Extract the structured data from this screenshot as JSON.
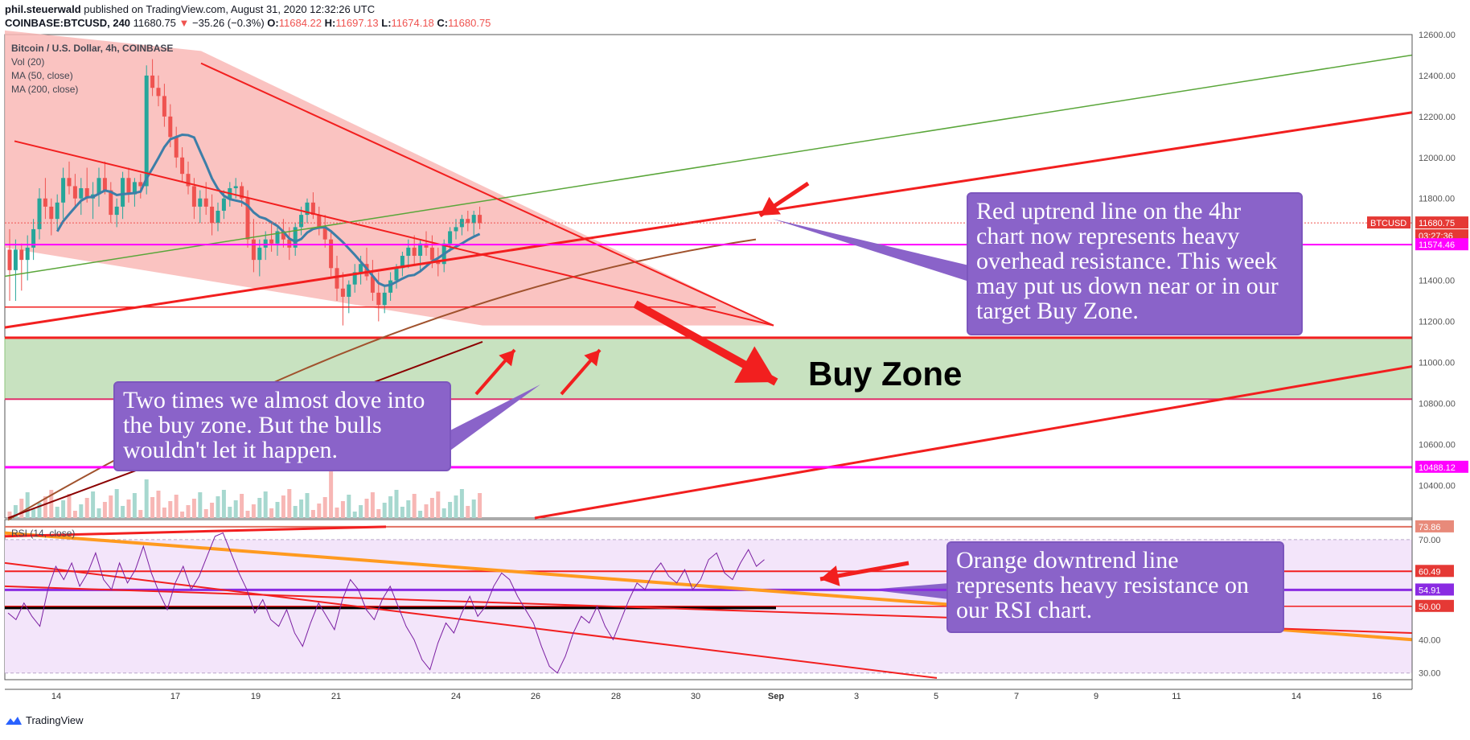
{
  "header": {
    "author": "phil.steuerwald",
    "published_text": "published on TradingView.com, August 31, 2020 12:32:26 UTC",
    "symbol": "COINBASE:BTCUSD, 240",
    "last": "11680.75",
    "change": "−35.26 (−0.3%)",
    "open_label": "O:",
    "open": "11684.22",
    "high_label": "H:",
    "high": "11697.13",
    "low_label": "L:",
    "low": "11674.18",
    "close_label": "C:",
    "close": "11680.75"
  },
  "legend": {
    "title": "Bitcoin / U.S. Dollar, 4h, COINBASE",
    "vol": "Vol (20)",
    "ma50": "MA (50, close)",
    "ma200": "MA (200, close)",
    "rsi": "RSI (14, close)"
  },
  "annotations": {
    "note_resistance": "Red uptrend line on the 4hr chart now represents heavy overhead resistance. This week may put us down near or in our target Buy Zone.",
    "note_dove": "Two times we almost dove into the buy zone. But the bulls wouldn't let it happen.",
    "note_rsi": "Orange downtrend line represents heavy resistance on our RSI chart.",
    "buy_zone": "Buy Zone"
  },
  "branding": {
    "label": "TradingView"
  },
  "colors": {
    "bull": "#26a69a",
    "bear": "#ef5350",
    "trend_red": "#f21f1f",
    "channel_fill": "#f9b9b6",
    "buyzone_fill": "#c8e2c0",
    "ma50": "#3d7ea8",
    "ma200": "#a0522d",
    "green_line": "#5aa63a",
    "magenta": "#ff00ff",
    "rsi_line": "#7b1fa2",
    "orange": "#ff9a1f",
    "rsi_bg": "#f3e5fa",
    "note": "#8a63c9"
  },
  "chart_data": [
    {
      "type": "candlestick",
      "title": "Bitcoin / U.S. Dollar, 4h, COINBASE",
      "x_tick_labels": [
        "14",
        "17",
        "19",
        "21",
        "24",
        "26",
        "28",
        "30",
        "Sep",
        "3",
        "5",
        "7",
        "9",
        "11",
        "14",
        "16"
      ],
      "y_tick_labels": [
        "12600.00",
        "12400.00",
        "12200.00",
        "12000.00",
        "11800.00",
        "11600.00",
        "11400.00",
        "11200.00",
        "11000.00",
        "10800.00",
        "10600.00",
        "10400.00"
      ],
      "ylim": [
        10240,
        12600
      ],
      "price_labels": [
        {
          "text": "BTCUSD",
          "value": 11680.75
        },
        {
          "text": "11680.75",
          "value": 11680.75
        },
        {
          "text": "03:27:36",
          "value": 11650
        },
        {
          "text": "11574.46",
          "value": 11574.46
        },
        {
          "text": "10488.12",
          "value": 10488.12
        }
      ],
      "candles_ohlc_approx": [
        [
          11550,
          11650,
          11300,
          11450
        ],
        [
          11450,
          11600,
          11300,
          11550
        ],
        [
          11550,
          11580,
          11350,
          11500
        ],
        [
          11500,
          11620,
          11400,
          11560
        ],
        [
          11560,
          11700,
          11500,
          11650
        ],
        [
          11650,
          11850,
          11600,
          11800
        ],
        [
          11800,
          11900,
          11700,
          11760
        ],
        [
          11760,
          11800,
          11620,
          11700
        ],
        [
          11700,
          11820,
          11650,
          11780
        ],
        [
          11780,
          11950,
          11700,
          11900
        ],
        [
          11900,
          11980,
          11820,
          11860
        ],
        [
          11860,
          11920,
          11760,
          11800
        ],
        [
          11800,
          11900,
          11720,
          11850
        ],
        [
          11850,
          11950,
          11780,
          11800
        ],
        [
          11800,
          11880,
          11700,
          11820
        ],
        [
          11820,
          11950,
          11760,
          11900
        ],
        [
          11900,
          11980,
          11820,
          11840
        ],
        [
          11840,
          11880,
          11680,
          11720
        ],
        [
          11720,
          11800,
          11660,
          11760
        ],
        [
          11760,
          11930,
          11700,
          11900
        ],
        [
          11900,
          11950,
          11780,
          11820
        ],
        [
          11820,
          11900,
          11760,
          11880
        ],
        [
          11880,
          11920,
          11800,
          11860
        ],
        [
          11860,
          12450,
          11820,
          12400
        ],
        [
          12400,
          12480,
          12300,
          12340
        ],
        [
          12340,
          12400,
          12250,
          12300
        ],
        [
          12300,
          12360,
          12150,
          12200
        ],
        [
          12200,
          12260,
          12050,
          12100
        ],
        [
          12100,
          12150,
          11950,
          12000
        ],
        [
          12000,
          12050,
          11880,
          11920
        ],
        [
          11920,
          11980,
          11820,
          11860
        ],
        [
          11860,
          11900,
          11700,
          11760
        ],
        [
          11760,
          11840,
          11680,
          11800
        ],
        [
          11800,
          11880,
          11720,
          11760
        ],
        [
          11760,
          11820,
          11620,
          11680
        ],
        [
          11680,
          11780,
          11640,
          11740
        ],
        [
          11740,
          11840,
          11700,
          11800
        ],
        [
          11800,
          11880,
          11760,
          11850
        ],
        [
          11850,
          11900,
          11800,
          11860
        ],
        [
          11860,
          11880,
          11760,
          11800
        ],
        [
          11800,
          11840,
          11560,
          11600
        ],
        [
          11600,
          11700,
          11440,
          11500
        ],
        [
          11500,
          11600,
          11420,
          11560
        ],
        [
          11560,
          11640,
          11500,
          11600
        ],
        [
          11600,
          11680,
          11540,
          11580
        ],
        [
          11580,
          11660,
          11520,
          11640
        ],
        [
          11640,
          11700,
          11560,
          11600
        ],
        [
          11600,
          11660,
          11500,
          11560
        ],
        [
          11560,
          11680,
          11520,
          11660
        ],
        [
          11660,
          11760,
          11620,
          11720
        ],
        [
          11720,
          11800,
          11680,
          11780
        ],
        [
          11780,
          11830,
          11700,
          11720
        ],
        [
          11720,
          11760,
          11620,
          11660
        ],
        [
          11660,
          11720,
          11560,
          11600
        ],
        [
          11600,
          11640,
          11420,
          11460
        ],
        [
          11460,
          11520,
          11300,
          11360
        ],
        [
          11360,
          11440,
          11180,
          11320
        ],
        [
          11320,
          11400,
          11240,
          11380
        ],
        [
          11380,
          11480,
          11340,
          11440
        ],
        [
          11440,
          11520,
          11380,
          11480
        ],
        [
          11480,
          11560,
          11400,
          11420
        ],
        [
          11420,
          11500,
          11300,
          11340
        ],
        [
          11340,
          11440,
          11200,
          11280
        ],
        [
          11280,
          11380,
          11240,
          11340
        ],
        [
          11340,
          11440,
          11300,
          11400
        ],
        [
          11400,
          11480,
          11360,
          11460
        ],
        [
          11460,
          11540,
          11420,
          11520
        ],
        [
          11520,
          11600,
          11460,
          11560
        ],
        [
          11560,
          11620,
          11480,
          11520
        ],
        [
          11520,
          11600,
          11440,
          11580
        ],
        [
          11580,
          11640,
          11520,
          11560
        ],
        [
          11560,
          11620,
          11460,
          11500
        ],
        [
          11500,
          11560,
          11420,
          11480
        ],
        [
          11480,
          11600,
          11440,
          11580
        ],
        [
          11580,
          11660,
          11540,
          11640
        ],
        [
          11640,
          11700,
          11600,
          11660
        ],
        [
          11660,
          11720,
          11620,
          11700
        ],
        [
          11700,
          11740,
          11640,
          11680
        ],
        [
          11680,
          11740,
          11620,
          11720
        ],
        [
          11720,
          11760,
          11650,
          11680
        ]
      ],
      "overlays": [
        "MA (50, close)",
        "MA (200, close)",
        "Vol (20)"
      ]
    },
    {
      "type": "line",
      "title": "RSI (14, close)",
      "y_tick_labels": [
        "70.00",
        "60.00",
        "50.00",
        "40.00",
        "30.00"
      ],
      "ylim": [
        28,
        76
      ],
      "level_labels": [
        {
          "text": "73.86",
          "value": 73.86
        },
        {
          "text": "60.49",
          "value": 60.49
        },
        {
          "text": "54.91",
          "value": 54.91
        },
        {
          "text": "50.00",
          "value": 50.0
        }
      ],
      "values": [
        48,
        46,
        51,
        47,
        44,
        55,
        62,
        58,
        63,
        56,
        60,
        66,
        58,
        55,
        63,
        57,
        61,
        68,
        60,
        54,
        49,
        57,
        62,
        55,
        59,
        65,
        71,
        72,
        66,
        60,
        55,
        48,
        52,
        46,
        44,
        49,
        42,
        38,
        45,
        51,
        47,
        43,
        52,
        58,
        55,
        49,
        46,
        52,
        56,
        50,
        44,
        40,
        34,
        31,
        39,
        45,
        42,
        48,
        53,
        47,
        50,
        56,
        60,
        58,
        53,
        49,
        45,
        38,
        32,
        30,
        35,
        42,
        47,
        45,
        50,
        44,
        40,
        46,
        52,
        57,
        55,
        60,
        63,
        59,
        57,
        61,
        55,
        58,
        64,
        66,
        60,
        58,
        63,
        67,
        62,
        64
      ]
    }
  ]
}
